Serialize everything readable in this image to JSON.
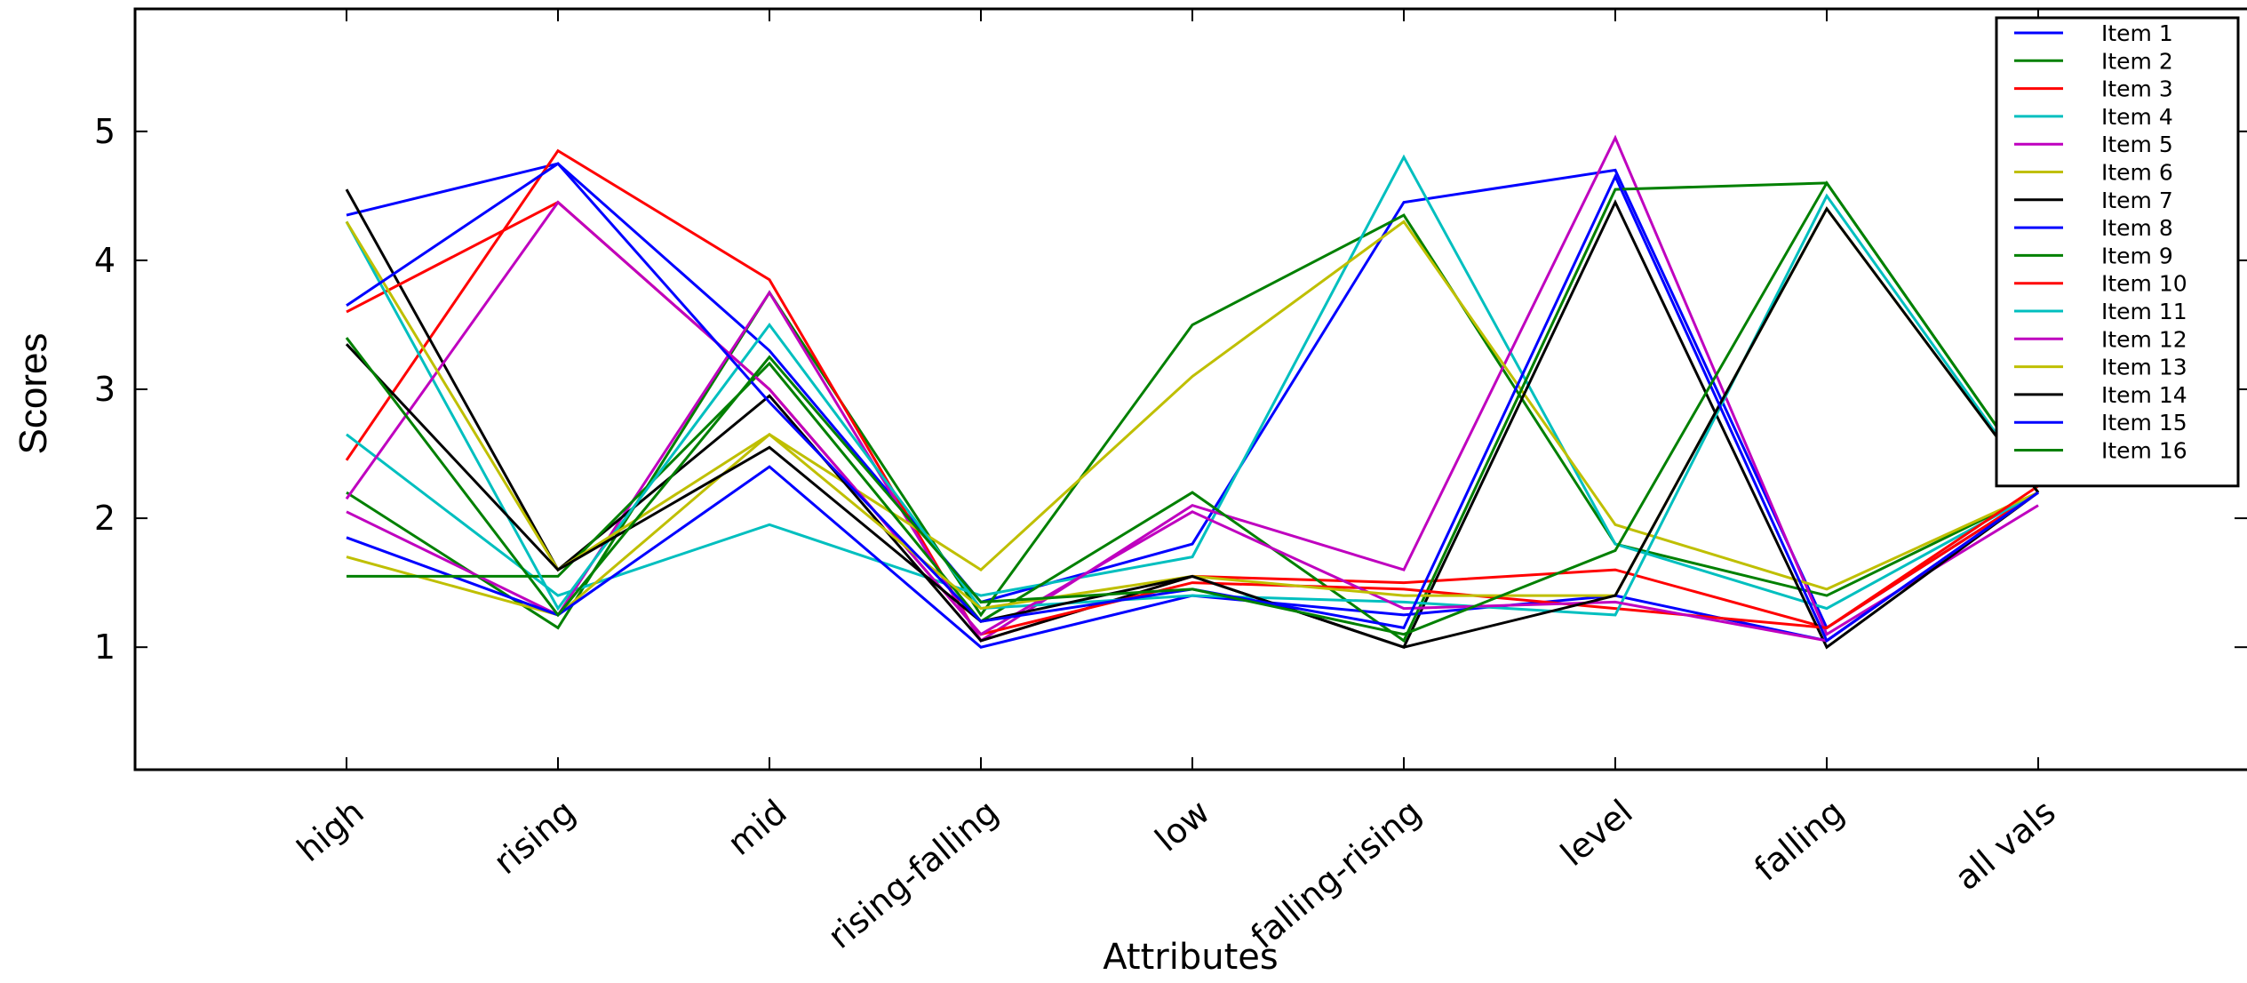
{
  "chart_data": {
    "type": "line",
    "title": "",
    "xlabel": "Attributes",
    "ylabel": "Scores",
    "categories": [
      "high",
      "rising",
      "mid",
      "rising-falling",
      "low",
      "falling-rising",
      "level",
      "falling",
      "all vals"
    ],
    "yticks": [
      1,
      2,
      3,
      4,
      5
    ],
    "ylim": [
      0.05,
      5.95
    ],
    "grid": false,
    "legend_position": "top-right",
    "series": [
      {
        "name": "Item 1",
        "color": "#0000ff",
        "values": [
          4.35,
          4.75,
          3.3,
          1.35,
          1.8,
          4.45,
          4.7,
          1.15,
          2.2
        ]
      },
      {
        "name": "Item 2",
        "color": "#008000",
        "values": [
          2.2,
          1.15,
          3.75,
          1.25,
          3.5,
          4.35,
          1.8,
          1.4,
          2.2
        ]
      },
      {
        "name": "Item 3",
        "color": "#ff0000",
        "values": [
          2.45,
          4.85,
          3.85,
          1.05,
          1.55,
          1.5,
          1.6,
          1.15,
          2.2
        ]
      },
      {
        "name": "Item 4",
        "color": "#00bfbf",
        "values": [
          2.65,
          1.4,
          1.95,
          1.4,
          1.7,
          4.8,
          1.8,
          1.3,
          2.2
        ]
      },
      {
        "name": "Item 5",
        "color": "#bf00bf",
        "values": [
          2.05,
          1.25,
          3.75,
          1.05,
          2.1,
          1.6,
          4.95,
          1.1,
          2.1
        ]
      },
      {
        "name": "Item 6",
        "color": "#bfbf00",
        "values": [
          1.7,
          1.25,
          2.65,
          1.6,
          3.1,
          4.3,
          1.95,
          1.45,
          2.2
        ]
      },
      {
        "name": "Item 7",
        "color": "#000000",
        "values": [
          4.55,
          1.6,
          2.95,
          1.05,
          1.55,
          1.0,
          4.45,
          1.0,
          2.2
        ]
      },
      {
        "name": "Item 8",
        "color": "#0000ff",
        "values": [
          1.85,
          1.25,
          2.4,
          1.0,
          1.4,
          1.25,
          1.4,
          1.05,
          2.2
        ]
      },
      {
        "name": "Item 9",
        "color": "#008000",
        "values": [
          1.55,
          1.55,
          3.2,
          1.2,
          2.2,
          1.05,
          4.55,
          4.6,
          2.25
        ]
      },
      {
        "name": "Item 10",
        "color": "#ff0000",
        "values": [
          3.6,
          4.45,
          3.0,
          1.1,
          1.5,
          1.45,
          1.3,
          1.15,
          2.25
        ]
      },
      {
        "name": "Item 11",
        "color": "#00bfbf",
        "values": [
          4.3,
          1.3,
          3.5,
          1.3,
          1.4,
          1.35,
          1.25,
          4.5,
          2.2
        ]
      },
      {
        "name": "Item 12",
        "color": "#bf00bf",
        "values": [
          2.15,
          4.45,
          3.0,
          1.1,
          2.05,
          1.3,
          1.35,
          1.05,
          2.2
        ]
      },
      {
        "name": "Item 13",
        "color": "#bfbf00",
        "values": [
          4.3,
          1.6,
          2.65,
          1.3,
          1.55,
          1.4,
          1.4,
          4.4,
          2.2
        ]
      },
      {
        "name": "Item 14",
        "color": "#000000",
        "values": [
          3.35,
          1.6,
          2.55,
          1.2,
          1.55,
          1.0,
          1.4,
          4.4,
          2.2
        ]
      },
      {
        "name": "Item 15",
        "color": "#0000ff",
        "values": [
          3.65,
          4.75,
          2.9,
          1.2,
          1.45,
          1.15,
          4.65,
          1.05,
          2.2
        ]
      },
      {
        "name": "Item 16",
        "color": "#008000",
        "values": [
          3.4,
          1.25,
          3.25,
          1.35,
          1.45,
          1.1,
          1.75,
          4.6,
          2.25
        ]
      }
    ]
  }
}
